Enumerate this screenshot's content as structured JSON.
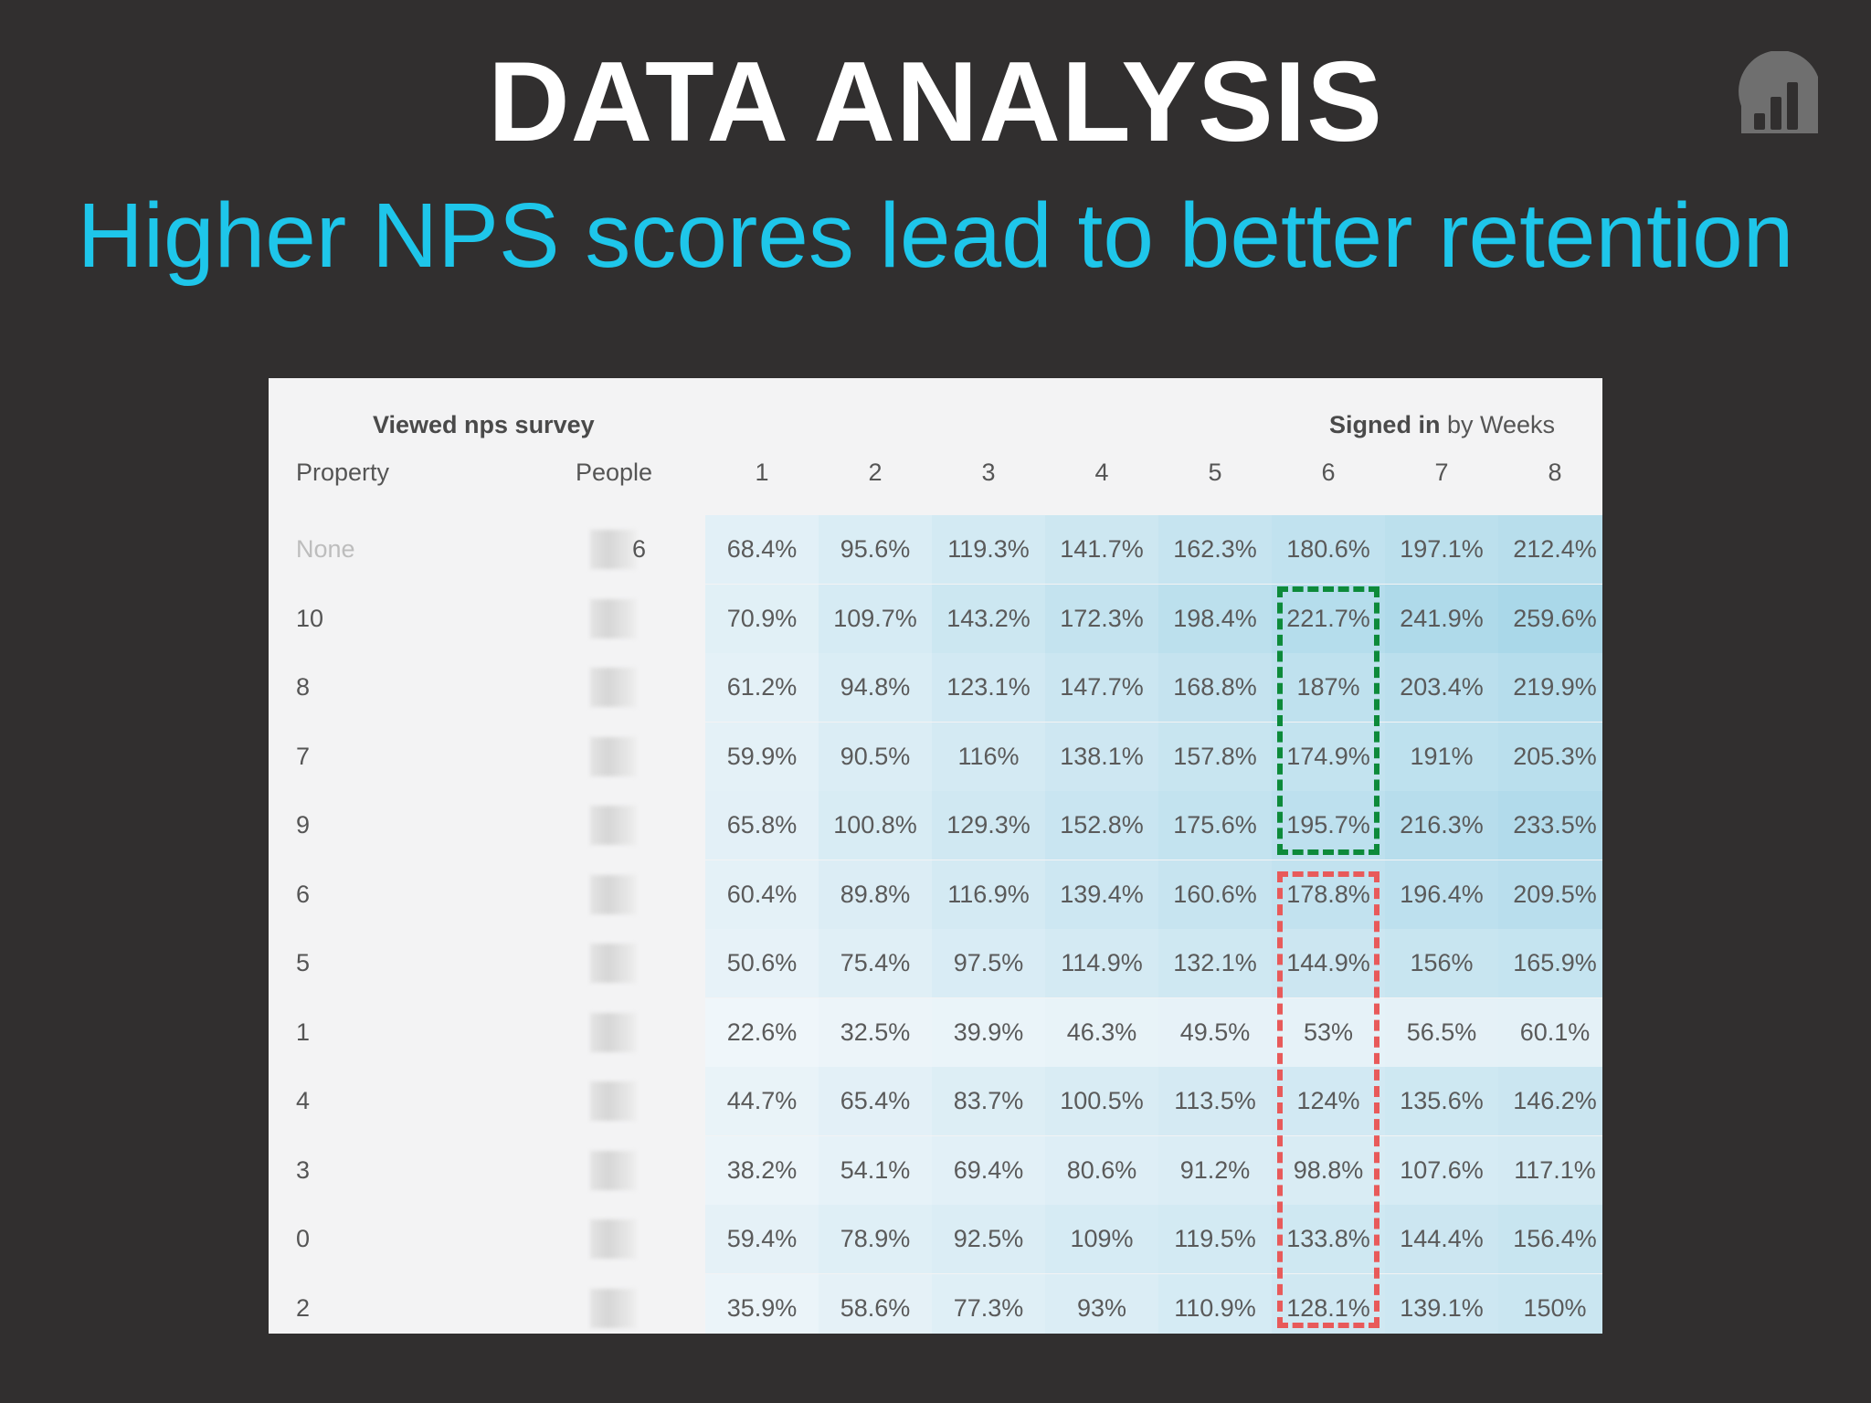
{
  "title": "DATA ANALYSIS",
  "subtitle": "Higher NPS scores lead to better retention",
  "logo_icon": "bar-chart-logo-icon",
  "table": {
    "left_header": "Viewed nps survey",
    "right_header_bold": "Signed in",
    "right_header_rest": " by Weeks",
    "col_property": "Property",
    "col_people": "People",
    "weeks": [
      "1",
      "2",
      "3",
      "4",
      "5",
      "6",
      "7",
      "8"
    ],
    "rows": [
      {
        "property": "None",
        "people": "6",
        "values": [
          "68.4%",
          "95.6%",
          "119.3%",
          "141.7%",
          "162.3%",
          "180.6%",
          "197.1%",
          "212.4%"
        ]
      },
      {
        "property": "10",
        "people": "",
        "values": [
          "70.9%",
          "109.7%",
          "143.2%",
          "172.3%",
          "198.4%",
          "221.7%",
          "241.9%",
          "259.6%"
        ]
      },
      {
        "property": "8",
        "people": "",
        "values": [
          "61.2%",
          "94.8%",
          "123.1%",
          "147.7%",
          "168.8%",
          "187%",
          "203.4%",
          "219.9%"
        ]
      },
      {
        "property": "7",
        "people": "",
        "values": [
          "59.9%",
          "90.5%",
          "116%",
          "138.1%",
          "157.8%",
          "174.9%",
          "191%",
          "205.3%"
        ]
      },
      {
        "property": "9",
        "people": "",
        "values": [
          "65.8%",
          "100.8%",
          "129.3%",
          "152.8%",
          "175.6%",
          "195.7%",
          "216.3%",
          "233.5%"
        ]
      },
      {
        "property": "6",
        "people": "",
        "values": [
          "60.4%",
          "89.8%",
          "116.9%",
          "139.4%",
          "160.6%",
          "178.8%",
          "196.4%",
          "209.5%"
        ]
      },
      {
        "property": "5",
        "people": "",
        "values": [
          "50.6%",
          "75.4%",
          "97.5%",
          "114.9%",
          "132.1%",
          "144.9%",
          "156%",
          "165.9%"
        ]
      },
      {
        "property": "1",
        "people": "",
        "values": [
          "22.6%",
          "32.5%",
          "39.9%",
          "46.3%",
          "49.5%",
          "53%",
          "56.5%",
          "60.1%"
        ]
      },
      {
        "property": "4",
        "people": "",
        "values": [
          "44.7%",
          "65.4%",
          "83.7%",
          "100.5%",
          "113.5%",
          "124%",
          "135.6%",
          "146.2%"
        ]
      },
      {
        "property": "3",
        "people": "",
        "values": [
          "38.2%",
          "54.1%",
          "69.4%",
          "80.6%",
          "91.2%",
          "98.8%",
          "107.6%",
          "117.1%"
        ]
      },
      {
        "property": "0",
        "people": "",
        "values": [
          "59.4%",
          "78.9%",
          "92.5%",
          "109%",
          "119.5%",
          "133.8%",
          "144.4%",
          "156.4%"
        ]
      },
      {
        "property": "2",
        "people": "",
        "values": [
          "35.9%",
          "58.6%",
          "77.3%",
          "93%",
          "110.9%",
          "128.1%",
          "139.1%",
          "150%"
        ]
      }
    ]
  },
  "colors": {
    "background": "#312f2f",
    "title": "#ffffff",
    "subtitle": "#1ec6ea",
    "highlight_high": "#0d8a3a",
    "highlight_low": "#e85a5a"
  }
}
